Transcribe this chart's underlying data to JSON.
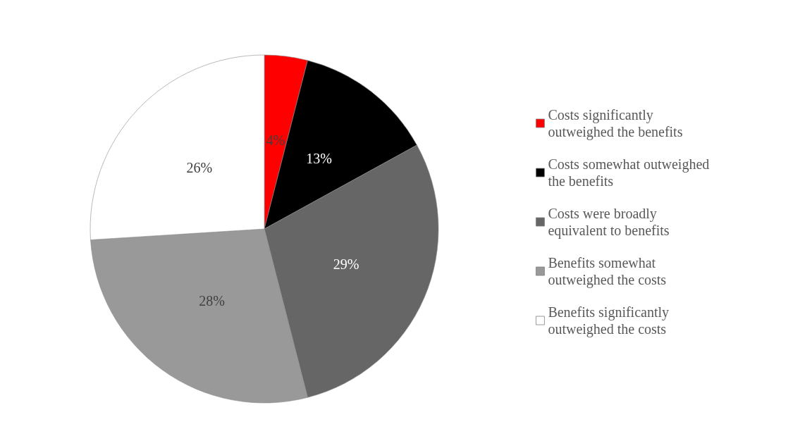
{
  "chart_data": {
    "type": "pie",
    "categories": [
      "Costs significantly outweighed the benefits",
      "Costs somewhat outweighed the benefits",
      "Costs were broadly equivalent to benefits",
      "Benefits somewhat outweighed the costs",
      "Benefits significantly outweighed the costs"
    ],
    "values": [
      4,
      13,
      29,
      28,
      26
    ],
    "colors": [
      "#ff0000",
      "#000000",
      "#666666",
      "#999999",
      "#ffffff"
    ],
    "value_labels": [
      "4%",
      "13%",
      "29%",
      "28%",
      "26%"
    ],
    "legend": "right"
  }
}
